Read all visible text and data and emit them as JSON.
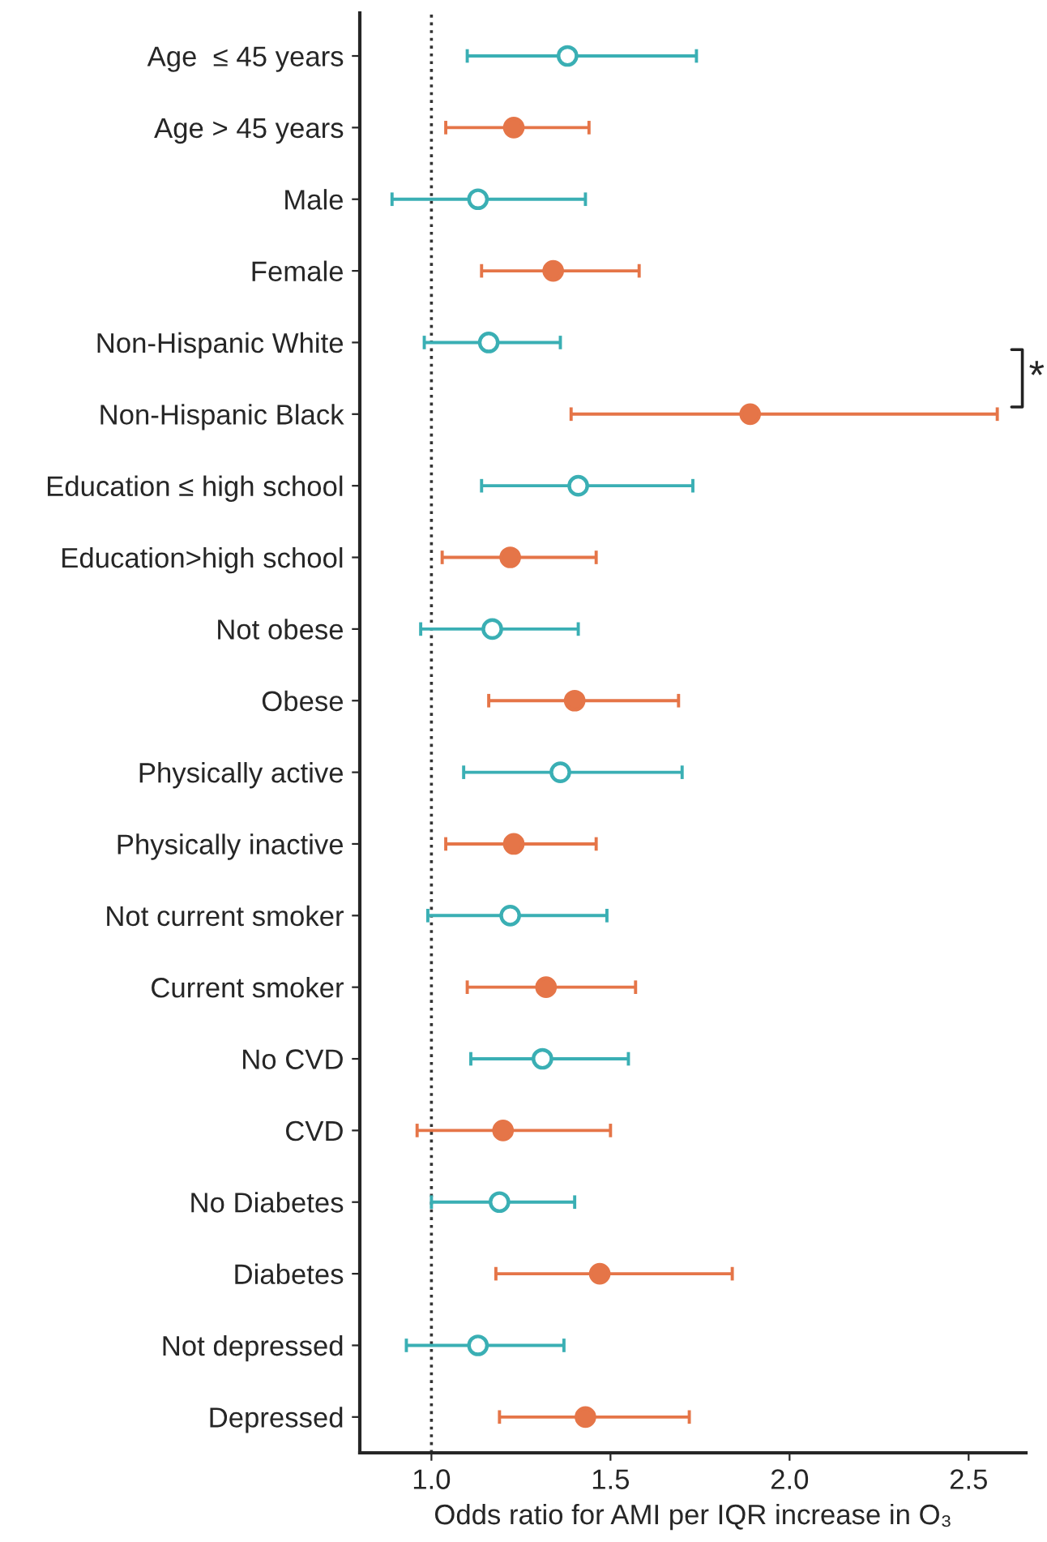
{
  "chart_data": {
    "type": "scatter",
    "categories": [
      "Age  ≤ 45 years",
      "Age > 45 years",
      "Male",
      "Female",
      "Non-Hispanic White",
      "Non-Hispanic Black",
      "Education ≤ high school",
      "Education>high school",
      "Not obese",
      "Obese",
      "Physically active",
      "Physically inactive",
      "Not current smoker",
      "Current smoker",
      "No CVD",
      "CVD",
      "No Diabetes",
      "Diabetes",
      "Not depressed",
      "Depressed"
    ],
    "orientation": "horizontal",
    "series": [
      {
        "color": "#3aafb4",
        "marker": "open circle",
        "values": [
          1.38,
          null,
          1.13,
          null,
          1.16,
          null,
          1.41,
          null,
          1.17,
          null,
          1.36,
          null,
          1.22,
          null,
          1.31,
          null,
          1.19,
          null,
          1.13,
          null
        ],
        "errors": [
          [
            1.1,
            1.74
          ],
          null,
          [
            0.89,
            1.43
          ],
          null,
          [
            0.98,
            1.36
          ],
          null,
          [
            1.14,
            1.73
          ],
          null,
          [
            0.97,
            1.41
          ],
          null,
          [
            1.09,
            1.7
          ],
          null,
          [
            0.99,
            1.49
          ],
          null,
          [
            1.11,
            1.55
          ],
          null,
          [
            1.0,
            1.4
          ],
          null,
          [
            0.93,
            1.37
          ],
          null
        ]
      },
      {
        "color": "#e57548",
        "marker": "circle",
        "values": [
          null,
          1.23,
          null,
          1.34,
          null,
          1.89,
          null,
          1.22,
          null,
          1.4,
          null,
          1.23,
          null,
          1.32,
          null,
          1.2,
          null,
          1.47,
          null,
          1.43
        ],
        "errors": [
          null,
          [
            1.04,
            1.44
          ],
          null,
          [
            1.14,
            1.58
          ],
          null,
          [
            1.39,
            2.58
          ],
          null,
          [
            1.03,
            1.46
          ],
          null,
          [
            1.16,
            1.69
          ],
          null,
          [
            1.04,
            1.46
          ],
          null,
          [
            1.1,
            1.57
          ],
          null,
          [
            0.96,
            1.5
          ],
          null,
          [
            1.18,
            1.84
          ],
          null,
          [
            1.19,
            1.72
          ]
        ]
      }
    ],
    "xlim": [
      0.8,
      2.66
    ],
    "xticks": [
      {
        "value": 1,
        "label": "1.0"
      },
      {
        "value": 1.5,
        "label": "1.5"
      },
      {
        "value": 2,
        "label": "2.0"
      },
      {
        "value": 2.5,
        "label": "2.5"
      }
    ],
    "xlabel": "Odds ratio for AMI per IQR increase in O₃",
    "ref_lines": [
      {
        "axis": "x",
        "value": 1,
        "line_style": "dotted",
        "color": "#333333"
      }
    ],
    "annotations": [
      "*"
    ],
    "grid": false,
    "legend": false
  }
}
